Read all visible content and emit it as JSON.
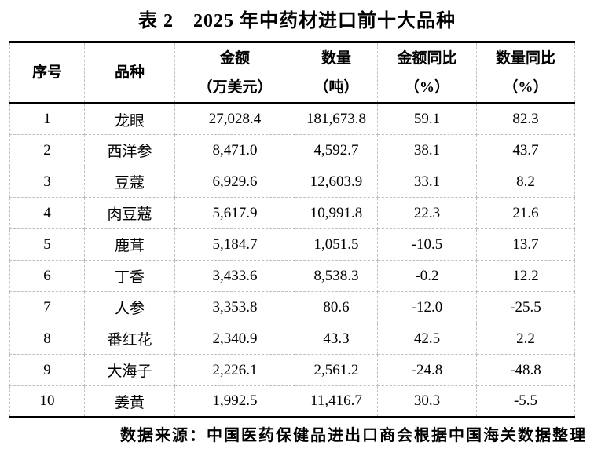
{
  "title": "表 2　2025 年中药材进口前十大品种",
  "table": {
    "columns": [
      {
        "title": "序号",
        "subtitle": ""
      },
      {
        "title": "品种",
        "subtitle": ""
      },
      {
        "title": "金额",
        "subtitle": "（万美元）"
      },
      {
        "title": "数量",
        "subtitle": "（吨）"
      },
      {
        "title": "金额同比",
        "subtitle": "（%）"
      },
      {
        "title": "数量同比",
        "subtitle": "（%）"
      }
    ],
    "rows": [
      {
        "rank": "1",
        "variety": "龙眼",
        "amount": "27,028.4",
        "quantity": "181,673.8",
        "amount_yoy": "59.1",
        "quantity_yoy": "82.3"
      },
      {
        "rank": "2",
        "variety": "西洋参",
        "amount": "8,471.0",
        "quantity": "4,592.7",
        "amount_yoy": "38.1",
        "quantity_yoy": "43.7"
      },
      {
        "rank": "3",
        "variety": "豆蔻",
        "amount": "6,929.6",
        "quantity": "12,603.9",
        "amount_yoy": "33.1",
        "quantity_yoy": "8.2"
      },
      {
        "rank": "4",
        "variety": "肉豆蔻",
        "amount": "5,617.9",
        "quantity": "10,991.8",
        "amount_yoy": "22.3",
        "quantity_yoy": "21.6"
      },
      {
        "rank": "5",
        "variety": "鹿茸",
        "amount": "5,184.7",
        "quantity": "1,051.5",
        "amount_yoy": "-10.5",
        "quantity_yoy": "13.7"
      },
      {
        "rank": "6",
        "variety": "丁香",
        "amount": "3,433.6",
        "quantity": "8,538.3",
        "amount_yoy": "-0.2",
        "quantity_yoy": "12.2"
      },
      {
        "rank": "7",
        "variety": "人参",
        "amount": "3,353.8",
        "quantity": "80.6",
        "amount_yoy": "-12.0",
        "quantity_yoy": "-25.5"
      },
      {
        "rank": "8",
        "variety": "番红花",
        "amount": "2,340.9",
        "quantity": "43.3",
        "amount_yoy": "42.5",
        "quantity_yoy": "2.2"
      },
      {
        "rank": "9",
        "variety": "大海子",
        "amount": "2,226.1",
        "quantity": "2,561.2",
        "amount_yoy": "-24.8",
        "quantity_yoy": "-48.8"
      },
      {
        "rank": "10",
        "variety": "姜黄",
        "amount": "1,992.5",
        "quantity": "11,416.7",
        "amount_yoy": "30.3",
        "quantity_yoy": "-5.5"
      }
    ]
  },
  "footer": {
    "source": "数据来源：中国医药保健品进出口商会根据中国海关数据整理"
  },
  "colors": {
    "text": "#000000",
    "border_strong": "#000000",
    "border_inner": "#bfbfbf",
    "background": "#ffffff"
  }
}
